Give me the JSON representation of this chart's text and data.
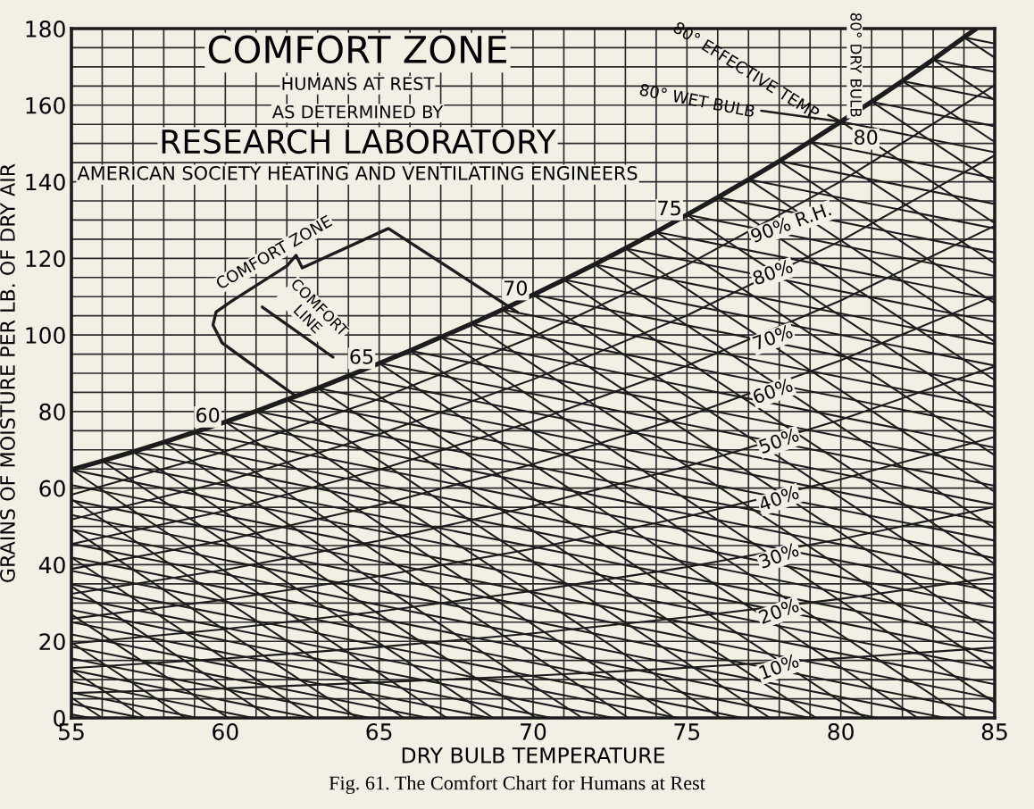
{
  "chart_data": {
    "type": "line",
    "title": "COMFORT ZONE",
    "subtitle": "HUMANS AT REST",
    "xlabel": "DRY BULB TEMPERATURE",
    "ylabel": "GRAINS OF MOISTURE PER LB. OF DRY AIR",
    "xlim": [
      55,
      85
    ],
    "ylim": [
      0,
      180
    ],
    "xticks": [
      55,
      {
        "value": 56,
        "label": null
      },
      {
        "value": 57,
        "label": null
      },
      {
        "value": 58,
        "label": null
      },
      {
        "value": 59,
        "label": null
      },
      60,
      {
        "value": 61,
        "label": null
      },
      {
        "value": 62,
        "label": null
      },
      {
        "value": 63,
        "label": null
      },
      {
        "value": 64,
        "label": null
      },
      65,
      {
        "value": 66,
        "label": null
      },
      {
        "value": 67,
        "label": null
      },
      {
        "value": 68,
        "label": null
      },
      {
        "value": 69,
        "label": null
      },
      70,
      {
        "value": 71,
        "label": null
      },
      {
        "value": 72,
        "label": null
      },
      {
        "value": 73,
        "label": null
      },
      {
        "value": 74,
        "label": null
      },
      75,
      {
        "value": 76,
        "label": null
      },
      {
        "value": 77,
        "label": null
      },
      {
        "value": 78,
        "label": null
      },
      {
        "value": 79,
        "label": null
      },
      80,
      {
        "value": 81,
        "label": null
      },
      {
        "value": 82,
        "label": null
      },
      {
        "value": 83,
        "label": null
      },
      {
        "value": 84,
        "label": null
      },
      85
    ],
    "yticks": [
      0,
      {
        "value": 5,
        "label": null
      },
      {
        "value": 10,
        "label": null
      },
      {
        "value": 15,
        "label": null
      },
      20,
      {
        "value": 25,
        "label": null
      },
      {
        "value": 30,
        "label": null
      },
      {
        "value": 35,
        "label": null
      },
      40,
      {
        "value": 45,
        "label": null
      },
      {
        "value": 50,
        "label": null
      },
      {
        "value": 55,
        "label": null
      },
      60,
      {
        "value": 65,
        "label": null
      },
      {
        "value": 70,
        "label": null
      },
      {
        "value": 75,
        "label": null
      },
      80,
      {
        "value": 85,
        "label": null
      },
      {
        "value": 90,
        "label": null
      },
      {
        "value": 95,
        "label": null
      },
      100,
      {
        "value": 105,
        "label": null
      },
      {
        "value": 110,
        "label": null
      },
      {
        "value": 115,
        "label": null
      },
      120,
      {
        "value": 125,
        "label": null
      },
      {
        "value": 130,
        "label": null
      },
      {
        "value": 135,
        "label": null
      },
      140,
      {
        "value": 145,
        "label": null
      },
      {
        "value": 150,
        "label": null
      },
      {
        "value": 155,
        "label": null
      },
      160,
      {
        "value": 165,
        "label": null
      },
      {
        "value": 170,
        "label": null
      },
      {
        "value": 175,
        "label": null
      },
      180
    ],
    "grid": true,
    "marker": "none",
    "line_style": "solid",
    "series": [
      {
        "type": "line",
        "color": "#1c1c1c",
        "x": [
          55,
          56,
          57,
          58,
          59,
          60,
          61,
          62,
          63,
          64,
          65,
          66,
          67,
          68,
          69,
          70,
          71,
          72,
          73,
          74,
          75,
          76,
          77,
          78,
          79,
          80,
          81,
          82,
          83,
          84,
          84.4
        ],
        "values": [
          64.8,
          67.1,
          69.5,
          72.0,
          74.6,
          77.3,
          80.1,
          83.1,
          86.1,
          89.3,
          92.6,
          95.9,
          99.4,
          102.9,
          106.6,
          110.5,
          114.4,
          118.4,
          122.6,
          126.9,
          131.4,
          135.9,
          140.6,
          145.4,
          150.5,
          155.7,
          160.9,
          166.3,
          171.9,
          177.7,
          180
        ]
      },
      {
        "type": "line",
        "color": "#1c1c1c",
        "x": [
          55,
          60,
          65,
          70,
          75,
          80,
          85
        ],
        "values": [
          6.5,
          7.7,
          9.3,
          11.0,
          13.1,
          15.6,
          18.4
        ]
      },
      {
        "type": "line",
        "color": "#1c1c1c",
        "x": [
          55,
          60,
          65,
          70,
          75,
          80,
          85
        ],
        "values": [
          13.0,
          15.5,
          18.5,
          22.1,
          26.3,
          31.1,
          36.7
        ]
      },
      {
        "type": "line",
        "color": "#1c1c1c",
        "x": [
          55,
          60,
          65,
          70,
          75,
          80,
          85
        ],
        "values": [
          19.4,
          23.2,
          27.8,
          33.2,
          39.4,
          46.7,
          55.1
        ]
      },
      {
        "type": "line",
        "color": "#1c1c1c",
        "x": [
          55,
          60,
          65,
          70,
          75,
          80,
          85
        ],
        "values": [
          25.9,
          30.9,
          37.0,
          44.2,
          52.6,
          62.3,
          73.4
        ]
      },
      {
        "type": "line",
        "color": "#1c1c1c",
        "x": [
          55,
          60,
          65,
          70,
          75,
          80,
          85
        ],
        "values": [
          32.4,
          38.7,
          46.3,
          55.3,
          65.7,
          77.9,
          91.8
        ]
      },
      {
        "type": "line",
        "color": "#1c1c1c",
        "x": [
          55,
          60,
          65,
          70,
          75,
          80,
          85
        ],
        "values": [
          38.9,
          46.4,
          55.6,
          66.3,
          78.8,
          93.4,
          110.2
        ]
      },
      {
        "type": "line",
        "color": "#1c1c1c",
        "x": [
          55,
          60,
          65,
          70,
          75,
          80,
          85
        ],
        "values": [
          45.4,
          54.1,
          64.8,
          77.4,
          92.0,
          109.0,
          128.5
        ]
      },
      {
        "type": "line",
        "color": "#1c1c1c",
        "x": [
          55,
          60,
          65,
          70,
          75,
          80,
          85
        ],
        "values": [
          51.8,
          61.8,
          74.1,
          88.4,
          105.1,
          124.6,
          146.9
        ]
      },
      {
        "type": "line",
        "color": "#1c1c1c",
        "x": [
          55,
          60,
          65,
          70,
          75,
          80,
          85
        ],
        "values": [
          58.3,
          69.6,
          83.3,
          99.5,
          118.3,
          140.1,
          165.2
        ]
      },
      {
        "type": "line",
        "color": "#1c1c1c",
        "x": [
          55,
          55.6
        ],
        "values": [
          0.9,
          0
        ]
      },
      {
        "type": "line",
        "color": "#1c1c1c",
        "x": [
          55,
          57.3
        ],
        "values": [
          3.7,
          0
        ]
      },
      {
        "type": "line",
        "color": "#1c1c1c",
        "x": [
          55,
          59.1
        ],
        "values": [
          6.6,
          0
        ]
      },
      {
        "type": "line",
        "color": "#1c1c1c",
        "x": [
          55,
          60.9
        ],
        "values": [
          9.5,
          0
        ]
      },
      {
        "type": "line",
        "color": "#1c1c1c",
        "x": [
          55,
          62.8
        ],
        "values": [
          12.5,
          0
        ]
      },
      {
        "type": "line",
        "color": "#1c1c1c",
        "x": [
          55,
          64.7
        ],
        "values": [
          15.5,
          0
        ]
      },
      {
        "type": "line",
        "color": "#1c1c1c",
        "x": [
          55,
          66.6
        ],
        "values": [
          18.6,
          0
        ]
      },
      {
        "type": "line",
        "color": "#1c1c1c",
        "x": [
          55,
          68.6
        ],
        "values": [
          21.8,
          0
        ]
      },
      {
        "type": "line",
        "color": "#1c1c1c",
        "x": [
          55,
          70.6
        ],
        "values": [
          25.0,
          0
        ]
      },
      {
        "type": "line",
        "color": "#1c1c1c",
        "x": [
          55,
          72.6
        ],
        "values": [
          28.2,
          0
        ]
      },
      {
        "type": "line",
        "color": "#1c1c1c",
        "x": [
          55,
          74.7
        ],
        "values": [
          31.5,
          0
        ]
      },
      {
        "type": "line",
        "color": "#1c1c1c",
        "x": [
          55,
          76.8
        ],
        "values": [
          34.9,
          0
        ]
      },
      {
        "type": "line",
        "color": "#1c1c1c",
        "x": [
          55,
          79.0
        ],
        "values": [
          38.4,
          0
        ]
      },
      {
        "type": "line",
        "color": "#1c1c1c",
        "x": [
          55,
          81.2
        ],
        "values": [
          41.9,
          0
        ]
      },
      {
        "type": "line",
        "color": "#1c1c1c",
        "x": [
          55,
          83.4
        ],
        "values": [
          45.5,
          0
        ]
      },
      {
        "type": "line",
        "color": "#1c1c1c",
        "x": [
          55,
          85
        ],
        "values": [
          49.2,
          1.2
        ]
      },
      {
        "type": "line",
        "color": "#1c1c1c",
        "x": [
          55,
          85
        ],
        "values": [
          53.0,
          5.0
        ]
      },
      {
        "type": "line",
        "color": "#1c1c1c",
        "x": [
          55,
          85
        ],
        "values": [
          56.8,
          8.8
        ]
      },
      {
        "type": "line",
        "color": "#1c1c1c",
        "x": [
          55,
          85
        ],
        "values": [
          60.8,
          12.8
        ]
      },
      {
        "type": "line",
        "color": "#1c1c1c",
        "x": [
          55,
          85
        ],
        "values": [
          64.8,
          16.8
        ]
      },
      {
        "type": "line",
        "color": "#1c1c1c",
        "x": [
          56,
          85
        ],
        "values": [
          67.1,
          20.7
        ]
      },
      {
        "type": "line",
        "color": "#1c1c1c",
        "x": [
          57,
          85
        ],
        "values": [
          69.5,
          24.7
        ]
      },
      {
        "type": "line",
        "color": "#1c1c1c",
        "x": [
          58,
          85
        ],
        "values": [
          72.0,
          28.8
        ]
      },
      {
        "type": "line",
        "color": "#1c1c1c",
        "x": [
          59,
          85
        ],
        "values": [
          74.6,
          33.0
        ]
      },
      {
        "type": "line",
        "color": "#1c1c1c",
        "x": [
          60,
          85
        ],
        "values": [
          77.3,
          37.3
        ]
      },
      {
        "type": "line",
        "color": "#1c1c1c",
        "x": [
          61,
          85
        ],
        "values": [
          80.1,
          41.7
        ]
      },
      {
        "type": "line",
        "color": "#1c1c1c",
        "x": [
          62,
          85
        ],
        "values": [
          83.1,
          46.3
        ]
      },
      {
        "type": "line",
        "color": "#1c1c1c",
        "x": [
          63,
          85
        ],
        "values": [
          86.1,
          50.9
        ]
      },
      {
        "type": "line",
        "color": "#1c1c1c",
        "x": [
          64,
          85
        ],
        "values": [
          89.3,
          55.7
        ]
      },
      {
        "type": "line",
        "color": "#1c1c1c",
        "x": [
          65,
          85
        ],
        "values": [
          92.6,
          60.6
        ]
      },
      {
        "type": "line",
        "color": "#1c1c1c",
        "x": [
          66,
          85
        ],
        "values": [
          95.9,
          65.5
        ]
      },
      {
        "type": "line",
        "color": "#1c1c1c",
        "x": [
          67,
          85
        ],
        "values": [
          99.4,
          70.6
        ]
      },
      {
        "type": "line",
        "color": "#1c1c1c",
        "x": [
          68,
          85
        ],
        "values": [
          102.9,
          75.7
        ]
      },
      {
        "type": "line",
        "color": "#1c1c1c",
        "x": [
          69,
          85
        ],
        "values": [
          106.6,
          81.0
        ]
      },
      {
        "type": "line",
        "color": "#1c1c1c",
        "x": [
          70,
          85
        ],
        "values": [
          110.5,
          86.5
        ]
      },
      {
        "type": "line",
        "color": "#1c1c1c",
        "x": [
          71,
          85
        ],
        "values": [
          114.4,
          92.0
        ]
      },
      {
        "type": "line",
        "color": "#1c1c1c",
        "x": [
          72,
          85
        ],
        "values": [
          118.4,
          97.6
        ]
      },
      {
        "type": "line",
        "color": "#1c1c1c",
        "x": [
          73,
          85
        ],
        "values": [
          122.6,
          103.4
        ]
      },
      {
        "type": "line",
        "color": "#1c1c1c",
        "x": [
          74,
          85
        ],
        "values": [
          126.9,
          109.3
        ]
      },
      {
        "type": "line",
        "color": "#1c1c1c",
        "x": [
          75,
          85
        ],
        "values": [
          131.4,
          115.4
        ]
      },
      {
        "type": "line",
        "color": "#1c1c1c",
        "x": [
          76,
          85
        ],
        "values": [
          135.9,
          121.5
        ]
      },
      {
        "type": "line",
        "color": "#1c1c1c",
        "x": [
          77,
          85
        ],
        "values": [
          140.6,
          127.8
        ]
      },
      {
        "type": "line",
        "color": "#1c1c1c",
        "x": [
          78,
          85
        ],
        "values": [
          145.4,
          134.2
        ]
      },
      {
        "type": "line",
        "color": "#1c1c1c",
        "x": [
          79,
          85
        ],
        "values": [
          150.5,
          140.9
        ]
      },
      {
        "type": "line",
        "color": "#1c1c1c",
        "x": [
          80,
          85
        ],
        "values": [
          155.7,
          147.7
        ]
      },
      {
        "type": "line",
        "color": "#1c1c1c",
        "x": [
          81,
          85
        ],
        "values": [
          160.9,
          154.5
        ]
      },
      {
        "type": "line",
        "color": "#1c1c1c",
        "x": [
          82,
          85
        ],
        "values": [
          166.3,
          161.5
        ]
      },
      {
        "type": "line",
        "color": "#1c1c1c",
        "x": [
          83,
          85
        ],
        "values": [
          171.9,
          168.7
        ]
      },
      {
        "type": "line",
        "color": "#1c1c1c",
        "x": [
          84,
          85
        ],
        "values": [
          177.7,
          176.1
        ]
      },
      {
        "type": "line",
        "color": "#1c1c1c",
        "x": [
          55,
          56.0
        ],
        "values": [
          5.3,
          0
        ]
      },
      {
        "type": "line",
        "color": "#1c1c1c",
        "x": [
          55,
          57.4
        ],
        "values": [
          12.5,
          0
        ]
      },
      {
        "type": "line",
        "color": "#1c1c1c",
        "x": [
          55,
          58.7
        ],
        "values": [
          19.7,
          0
        ]
      },
      {
        "type": "line",
        "color": "#1c1c1c",
        "x": [
          55,
          60.1
        ],
        "values": [
          27.0,
          0
        ]
      },
      {
        "type": "line",
        "color": "#1c1c1c",
        "x": [
          55,
          61.5
        ],
        "values": [
          34.4,
          0
        ]
      },
      {
        "type": "line",
        "color": "#1c1c1c",
        "x": [
          55,
          62.9
        ],
        "values": [
          41.9,
          0
        ]
      },
      {
        "type": "line",
        "color": "#1c1c1c",
        "x": [
          55,
          64.3
        ],
        "values": [
          49.4,
          0
        ]
      },
      {
        "type": "line",
        "color": "#1c1c1c",
        "x": [
          55,
          65.8
        ],
        "values": [
          57.1,
          0
        ]
      },
      {
        "type": "line",
        "color": "#1c1c1c",
        "x": [
          55,
          67.2
        ],
        "values": [
          64.8,
          0
        ]
      },
      {
        "type": "line",
        "color": "#1c1c1c",
        "x": [
          56,
          68.7
        ],
        "values": [
          67.1,
          0
        ]
      },
      {
        "type": "line",
        "color": "#1c1c1c",
        "x": [
          57,
          70.1
        ],
        "values": [
          69.5,
          0
        ]
      },
      {
        "type": "line",
        "color": "#1c1c1c",
        "x": [
          58,
          71.6
        ],
        "values": [
          72.0,
          0
        ]
      },
      {
        "type": "line",
        "color": "#1c1c1c",
        "x": [
          59,
          73.1
        ],
        "values": [
          74.6,
          0
        ]
      },
      {
        "type": "line",
        "color": "#1c1c1c",
        "x": [
          60,
          74.6
        ],
        "values": [
          77.3,
          0
        ]
      },
      {
        "type": "line",
        "color": "#1c1c1c",
        "x": [
          61,
          76.1
        ],
        "values": [
          80.1,
          0
        ]
      },
      {
        "type": "line",
        "color": "#1c1c1c",
        "x": [
          62,
          77.7
        ],
        "values": [
          83.1,
          0
        ]
      },
      {
        "type": "line",
        "color": "#1c1c1c",
        "x": [
          63,
          79.2
        ],
        "values": [
          86.1,
          0
        ]
      },
      {
        "type": "line",
        "color": "#1c1c1c",
        "x": [
          64,
          80.8
        ],
        "values": [
          89.3,
          0
        ]
      },
      {
        "type": "line",
        "color": "#1c1c1c",
        "x": [
          65,
          82.5
        ],
        "values": [
          92.6,
          0
        ]
      },
      {
        "type": "line",
        "color": "#1c1c1c",
        "x": [
          66,
          84.1
        ],
        "values": [
          95.9,
          0
        ]
      },
      {
        "type": "line",
        "color": "#1c1c1c",
        "x": [
          67,
          85
        ],
        "values": [
          99.4,
          4.0
        ]
      },
      {
        "type": "line",
        "color": "#1c1c1c",
        "x": [
          68,
          85
        ],
        "values": [
          102.9,
          12.8
        ]
      },
      {
        "type": "line",
        "color": "#1c1c1c",
        "x": [
          69,
          85
        ],
        "values": [
          106.6,
          21.8
        ]
      },
      {
        "type": "line",
        "color": "#1c1c1c",
        "x": [
          70,
          85
        ],
        "values": [
          110.5,
          31.0
        ]
      },
      {
        "type": "line",
        "color": "#1c1c1c",
        "x": [
          71,
          85
        ],
        "values": [
          114.4,
          40.2
        ]
      },
      {
        "type": "line",
        "color": "#1c1c1c",
        "x": [
          72,
          85
        ],
        "values": [
          118.4,
          49.5
        ]
      },
      {
        "type": "line",
        "color": "#1c1c1c",
        "x": [
          73,
          85
        ],
        "values": [
          122.6,
          59.0
        ]
      },
      {
        "type": "line",
        "color": "#1c1c1c",
        "x": [
          74,
          85
        ],
        "values": [
          126.9,
          68.6
        ]
      },
      {
        "type": "line",
        "color": "#1c1c1c",
        "x": [
          75,
          85
        ],
        "values": [
          131.4,
          78.4
        ]
      },
      {
        "type": "line",
        "color": "#1c1c1c",
        "x": [
          76,
          85
        ],
        "values": [
          135.9,
          88.2
        ]
      },
      {
        "type": "line",
        "color": "#1c1c1c",
        "x": [
          77,
          85
        ],
        "values": [
          140.6,
          98.2
        ]
      },
      {
        "type": "line",
        "color": "#1c1c1c",
        "x": [
          78,
          85
        ],
        "values": [
          145.4,
          108.3
        ]
      },
      {
        "type": "line",
        "color": "#1c1c1c",
        "x": [
          79,
          85
        ],
        "values": [
          150.5,
          118.7
        ]
      },
      {
        "type": "line",
        "color": "#1c1c1c",
        "x": [
          80,
          85
        ],
        "values": [
          155.7,
          129.2
        ]
      },
      {
        "type": "line",
        "color": "#1c1c1c",
        "x": [
          81,
          85
        ],
        "values": [
          160.9,
          139.7
        ]
      },
      {
        "type": "line",
        "color": "#1c1c1c",
        "x": [
          82,
          85
        ],
        "values": [
          166.3,
          150.4
        ]
      },
      {
        "type": "line",
        "color": "#1c1c1c",
        "x": [
          83,
          85
        ],
        "values": [
          171.9,
          161.3
        ]
      },
      {
        "type": "line",
        "color": "#1c1c1c",
        "x": [
          84,
          85
        ],
        "values": [
          177.7,
          172.4
        ]
      },
      {
        "type": "line",
        "color": "#1c1c1c",
        "x": [
          62.3,
          61.0,
          59.9,
          59.6,
          59.7,
          60.2,
          62.0,
          62.3,
          62.5,
          65.3,
          69.5
        ],
        "values": [
          84.0,
          91.5,
          97.9,
          102.6,
          106.0,
          108.8,
          118.0,
          120.8,
          117.5,
          127.8,
          105.9
        ]
      },
      {
        "type": "line",
        "color": "#1c1c1c",
        "x": [
          61.2,
          63.5
        ],
        "values": [
          107.3,
          94.2
        ]
      }
    ],
    "annotations": [
      "AS DETERMINED BY",
      "RESEARCH LABORATORY",
      "AMERICAN SOCIETY HEATING AND VENTILATING ENGINEERS",
      "Fig. 61. The Comfort Chart for Humans at Rest",
      "80° DRY BULB",
      "COMFORT ZONE",
      "90% R.H.",
      {
        "text": "60",
        "x": 60,
        "y": 77.3
      },
      {
        "text": "65",
        "x": 65,
        "y": 92.6
      },
      {
        "text": "70",
        "x": 70,
        "y": 110.5
      },
      {
        "text": "75",
        "x": 75,
        "y": 131.4
      },
      {
        "text": "80",
        "x": 80,
        "y": 155.7
      },
      {
        "text": "80° EFFECTIVE TEMP.",
        "x": 80,
        "y": 155.7
      },
      {
        "text": "80° WET BULB",
        "x": 80,
        "y": 155.7
      },
      {
        "text": "COMFORT\nLINE",
        "x": 62.2,
        "y": 101.6
      },
      {
        "text": "80%",
        "x": 77.8,
        "y": 116
      },
      {
        "text": "70%",
        "x": 77.8,
        "y": 99
      },
      {
        "text": "60%",
        "x": 77.8,
        "y": 85
      },
      {
        "text": "50%",
        "x": 78.0,
        "y": 72
      },
      {
        "text": "40%",
        "x": 78.0,
        "y": 57
      },
      {
        "text": "30%",
        "x": 78.0,
        "y": 42
      },
      {
        "text": "20%",
        "x": 78.0,
        "y": 27.5
      },
      {
        "text": "10%",
        "x": 78.0,
        "y": 13
      }
    ]
  }
}
